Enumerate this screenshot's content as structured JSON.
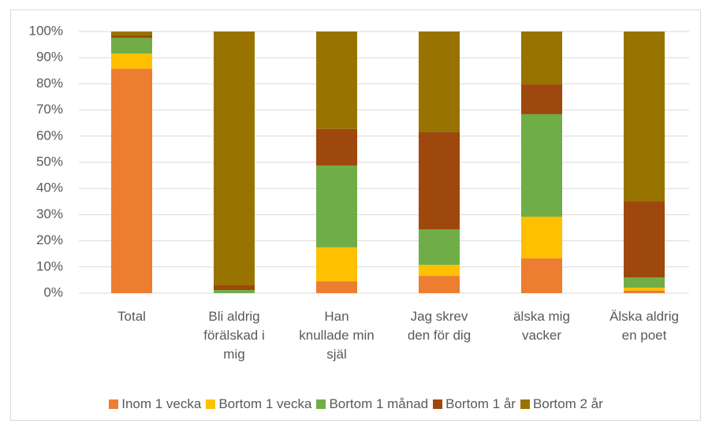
{
  "chart_data": {
    "type": "stacked_bar",
    "categories": [
      "Total",
      "Bli aldrig förälskad i mig",
      "Han knullade min själ",
      "Jag skrev den för dig",
      "älska mig vacker",
      "Älska aldrig en poet"
    ],
    "series": [
      {
        "name": "Inom 1 vecka",
        "color": "#ed7d31",
        "values": [
          85.8,
          0,
          4.5,
          6.6,
          13.3,
          1
        ]
      },
      {
        "name": "Bortom 1 vecka",
        "color": "#ffc000",
        "values": [
          5.8,
          0,
          13,
          4.2,
          15.9,
          1.1
        ]
      },
      {
        "name": "Bortom 1 månad",
        "color": "#70ad47",
        "values": [
          6,
          1.2,
          31.3,
          13.6,
          39.2,
          3.9
        ]
      },
      {
        "name": "Bortom 1 år",
        "color": "#9e480e",
        "values": [
          0.9,
          1.8,
          13.9,
          37.3,
          11.4,
          29.2
        ]
      },
      {
        "name": "Bortom 2 år",
        "color": "#997300",
        "values": [
          1.5,
          97,
          37.3,
          38.3,
          20.2,
          64.8
        ]
      }
    ],
    "ylim": [
      0,
      100
    ],
    "yticks": [
      {
        "value": 0,
        "label": "0%"
      },
      {
        "value": 10,
        "label": "10%"
      },
      {
        "value": 20,
        "label": "20%"
      },
      {
        "value": 30,
        "label": "30%"
      },
      {
        "value": 40,
        "label": "40%"
      },
      {
        "value": 50,
        "label": "50%"
      },
      {
        "value": 60,
        "label": "60%"
      },
      {
        "value": 70,
        "label": "70%"
      },
      {
        "value": 80,
        "label": "80%"
      },
      {
        "value": 90,
        "label": "90%"
      },
      {
        "value": 100,
        "label": "100%"
      }
    ],
    "grid": true,
    "legend": "bottom"
  }
}
